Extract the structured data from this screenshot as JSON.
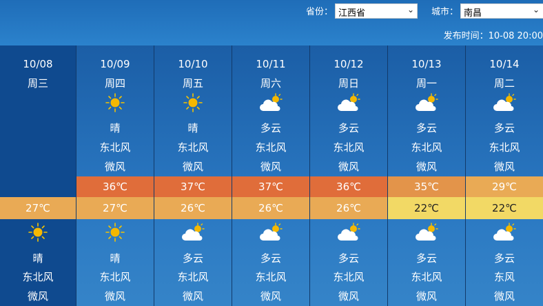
{
  "header": {
    "province_label": "省份：",
    "province_value": "江西省",
    "city_label": "城市：",
    "city_value": "南昌",
    "publish_time": "发布时间：10-08 20:00"
  },
  "colors": {
    "hot": "#e06d3a",
    "warm": "#e3944a",
    "mild": "#e9aa55",
    "cool": "#f2d965",
    "first_col": "#0f4a8f"
  },
  "days": [
    {
      "date": "10/08",
      "weekday": "周三",
      "day": null,
      "high": null,
      "low": "27℃",
      "night": {
        "icon": "sun-icon",
        "weather": "晴",
        "wind": "东北风",
        "level": "微风"
      }
    },
    {
      "date": "10/09",
      "weekday": "周四",
      "day": {
        "icon": "sun-icon",
        "weather": "晴",
        "wind": "东北风",
        "level": "微风"
      },
      "high": "36℃",
      "low": "27℃",
      "night": {
        "icon": "sun-icon",
        "weather": "晴",
        "wind": "东北风",
        "level": "微风"
      }
    },
    {
      "date": "10/10",
      "weekday": "周五",
      "day": {
        "icon": "sun-icon",
        "weather": "晴",
        "wind": "东北风",
        "level": "微风"
      },
      "high": "37℃",
      "low": "26℃",
      "night": {
        "icon": "cloud-sun-icon",
        "weather": "多云",
        "wind": "东北风",
        "level": "微风"
      }
    },
    {
      "date": "10/11",
      "weekday": "周六",
      "day": {
        "icon": "cloud-sun-icon",
        "weather": "多云",
        "wind": "东北风",
        "level": "微风"
      },
      "high": "37℃",
      "low": "26℃",
      "night": {
        "icon": "cloud-sun-icon",
        "weather": "多云",
        "wind": "东北风",
        "level": "微风"
      }
    },
    {
      "date": "10/12",
      "weekday": "周日",
      "day": {
        "icon": "cloud-sun-icon",
        "weather": "多云",
        "wind": "东北风",
        "level": "微风"
      },
      "high": "36℃",
      "low": "26℃",
      "night": {
        "icon": "cloud-sun-icon",
        "weather": "多云",
        "wind": "东北风",
        "level": "微风"
      }
    },
    {
      "date": "10/13",
      "weekday": "周一",
      "day": {
        "icon": "cloud-sun-icon",
        "weather": "多云",
        "wind": "东北风",
        "level": "微风"
      },
      "high": "35℃",
      "low": "22℃",
      "night": {
        "icon": "cloud-sun-icon",
        "weather": "多云",
        "wind": "东北风",
        "level": "微风"
      }
    },
    {
      "date": "10/14",
      "weekday": "周二",
      "day": {
        "icon": "cloud-sun-icon",
        "weather": "多云",
        "wind": "东北风",
        "level": "微风"
      },
      "high": "29℃",
      "low": "22℃",
      "night": {
        "icon": "cloud-sun-icon",
        "weather": "多云",
        "wind": "东风",
        "level": "微风"
      }
    }
  ]
}
